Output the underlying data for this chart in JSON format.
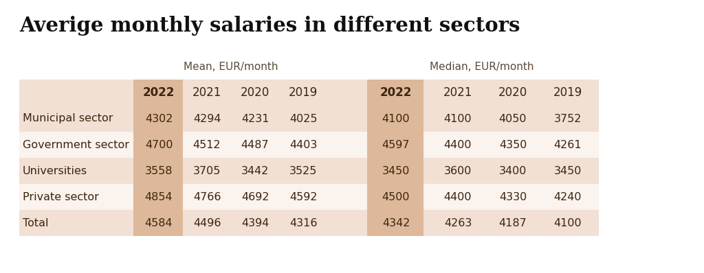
{
  "title": "Averige monthly salaries in different sectors",
  "background_color": "#ffffff",
  "group_headers": [
    "Mean, EUR/month",
    "Median, EUR/month"
  ],
  "col_years": [
    "2022",
    "2021",
    "2020",
    "2019"
  ],
  "row_labels": [
    "Municipal sector",
    "Government sector",
    "Universities",
    "Private sector",
    "Total"
  ],
  "mean_data": [
    [
      4302,
      4294,
      4231,
      4025
    ],
    [
      4700,
      4512,
      4487,
      4403
    ],
    [
      3558,
      3705,
      3442,
      3525
    ],
    [
      4854,
      4766,
      4692,
      4592
    ],
    [
      4584,
      4496,
      4394,
      4316
    ]
  ],
  "median_data": [
    [
      4100,
      4100,
      4050,
      3752
    ],
    [
      4597,
      4400,
      4350,
      4261
    ],
    [
      3450,
      3600,
      3400,
      3450
    ],
    [
      4500,
      4400,
      4330,
      4240
    ],
    [
      4342,
      4263,
      4187,
      4100
    ]
  ],
  "color_highlight_2022": "#deb89a",
  "color_row_even": "#f2e0d4",
  "color_row_odd": "#faf3ee",
  "color_header_row": "#f2e0d4",
  "text_color": "#3a2510",
  "title_color": "#111111",
  "group_header_color": "#5a4a3a",
  "title_fontsize": 21,
  "group_header_fontsize": 11,
  "cell_fontsize": 11.5,
  "row_label_fontsize": 11.5,
  "year_header_fontsize": 12
}
